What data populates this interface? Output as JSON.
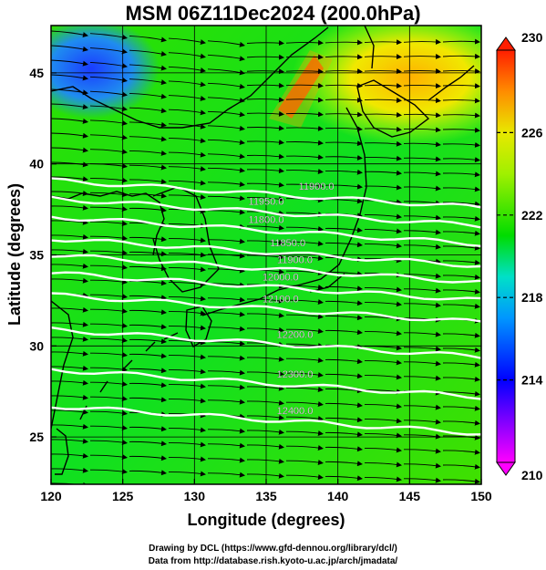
{
  "title": "MSM 06Z11Dec2024 (200.0hPa)",
  "credits": {
    "line1": "Drawing by DCL (https://www.gfd-dennou.org/library/dcl/)",
    "line2": "Data from http://database.rish.kyoto-u.ac.jp/arch/jmadata/"
  },
  "map": {
    "xlabel": "Longitude (degrees)",
    "ylabel": "Latitude  (degrees)",
    "xlim": [
      120,
      150
    ],
    "ylim": [
      22.4,
      47.6
    ],
    "xticks": [
      120,
      125,
      130,
      135,
      140,
      145,
      150
    ],
    "yticks": [
      25,
      30,
      35,
      40,
      45
    ],
    "contours": [
      {
        "label": "11900.0",
        "lat": 39.1
      },
      {
        "label": "11950.0",
        "lat": 38.1
      },
      {
        "label": "11800.0",
        "lat": 37.1
      },
      {
        "label": "11850.0",
        "lat": 35.9
      },
      {
        "label": "11900.0",
        "lat": 35.0
      },
      {
        "label": "12000.0",
        "lat": 34.0
      },
      {
        "label": "12100.0",
        "lat": 32.8
      },
      {
        "label": "12200.0",
        "lat": 30.9
      },
      {
        "label": "12300.0",
        "lat": 28.7
      },
      {
        "label": "12400.0",
        "lat": 26.7
      }
    ]
  },
  "colorbar": {
    "min": 210,
    "max": 230,
    "ticks": [
      {
        "value": 210,
        "label": "210"
      },
      {
        "value": 214,
        "label": "214"
      },
      {
        "value": 218,
        "label": "218"
      },
      {
        "value": 222,
        "label": "222"
      },
      {
        "value": 226,
        "label": "226"
      },
      {
        "value": 230,
        "label": "230"
      }
    ],
    "colors": [
      "#ff00ff",
      "#0000ff",
      "#00c8ff",
      "#00dc00",
      "#c8ff00",
      "#ff8000",
      "#ff0000"
    ]
  }
}
